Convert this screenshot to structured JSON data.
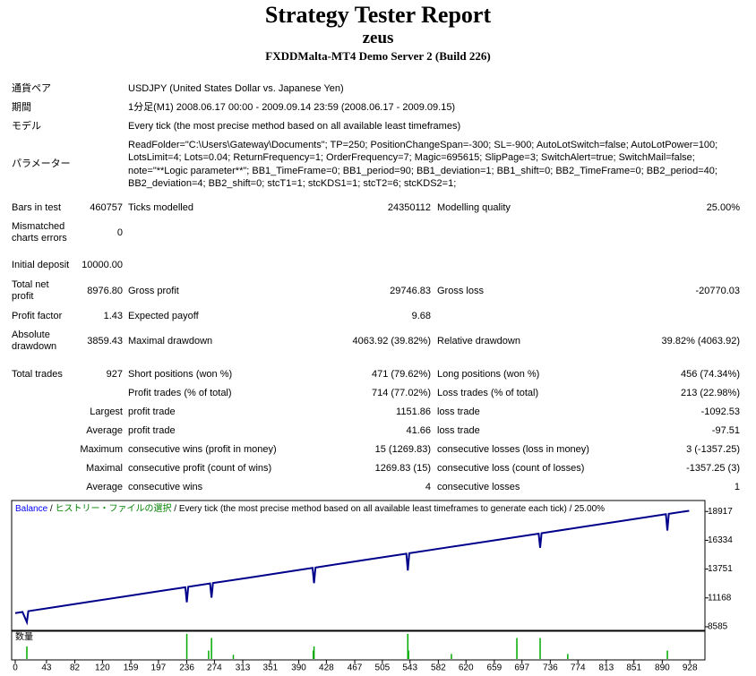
{
  "header": {
    "title": "Strategy Tester Report",
    "name": "zeus",
    "server": "FXDDMalta-MT4 Demo Server 2 (Build 226)"
  },
  "info": [
    {
      "label": "通貨ペア",
      "value": [
        "USDJPY (United States Dollar vs. Japanese Yen)"
      ]
    },
    {
      "label": "期間",
      "value": [
        "1分足(M1) 2008.06.17 00:00 - 2009.09.14 23:59 (2008.06.17 - 2009.09.15)"
      ]
    },
    {
      "label": "モデル",
      "value": [
        "Every tick (the most precise method based on all available least timeframes)"
      ]
    },
    {
      "label": "パラメーター",
      "value": [
        "ReadFolder=\"C:\\Users\\Gateway\\Documents\"; TP=250; PositionChangeSpan=-300; SL=-900; AutoLotSwitch=false; AutoLotPower=100;",
        "LotsLimit=4; Lots=0.04; ReturnFrequency=1; OrderFrequency=7; Magic=695615; SlipPage=3; SwitchAlert=true; SwitchMail=false;",
        "note=\"**Logic parameter**\"; BB1_TimeFrame=0; BB1_period=90; BB1_deviation=1; BB1_shift=0; BB2_TimeFrame=0; BB2_period=40;",
        "BB2_deviation=4; BB2_shift=0; stcT1=1; stcKDS1=1; stcT2=6; stcKDS2=1;"
      ]
    }
  ],
  "stats": [
    {
      "label": [
        "Bars in test"
      ],
      "value": "460757",
      "label2": "Ticks modelled",
      "value2": "24350112",
      "label3": "Modelling quality",
      "value3": "25.00%"
    },
    {
      "label": [
        "Mismatched",
        "charts errors"
      ],
      "value": "0"
    },
    {
      "label": [
        "Initial deposit"
      ],
      "value": "10000.00"
    },
    {
      "label": [
        "Total net",
        "profit"
      ],
      "value": "8976.80",
      "label2": "Gross profit",
      "value2": "29746.83",
      "label3": "Gross loss",
      "value3": "-20770.03"
    },
    {
      "label": [
        "Profit factor"
      ],
      "value": "1.43",
      "label2": "Expected payoff",
      "value2": "9.68"
    },
    {
      "label": [
        "Absolute",
        "drawdown"
      ],
      "value": "3859.43",
      "label2": "Maximal drawdown",
      "value2": "4063.92 (39.82%)",
      "label3": "Relative drawdown",
      "value3": "39.82% (4063.92)"
    },
    {
      "label": [
        "Total trades"
      ],
      "value": "927",
      "label2": "Short positions (won %)",
      "value2": "471 (79.62%)",
      "label3": "Long positions (won %)",
      "value3": "456 (74.34%)"
    },
    {
      "label2": "Profit trades (% of total)",
      "value2": "714 (77.02%)",
      "label3": "Loss trades (% of total)",
      "value3": "213 (22.98%)"
    },
    {
      "prefix": "Largest",
      "label2": "profit trade",
      "value2": "1151.86",
      "label3": "loss trade",
      "value3": "-1092.53"
    },
    {
      "prefix": "Average",
      "label2": "profit trade",
      "value2": "41.66",
      "label3": "loss trade",
      "value3": "-97.51"
    },
    {
      "prefix": "Maximum",
      "label2": "consecutive wins (profit in money)",
      "value2": "15 (1269.83)",
      "label3": "consecutive losses (loss in money)",
      "value3": "3 (-1357.25)"
    },
    {
      "prefix": "Maximal",
      "label2": "consecutive profit (count of wins)",
      "value2": "1269.83 (15)",
      "label3": "consecutive loss (count of losses)",
      "value3": "-1357.25 (3)"
    },
    {
      "prefix": "Average",
      "label2": "consecutive wins",
      "value2": "4",
      "label3": "consecutive losses",
      "value3": "1"
    }
  ],
  "chart_data": {
    "type": "line",
    "legend": [
      {
        "text": "Balance",
        "color": "#0000ff"
      },
      {
        "text": " / ",
        "color": "#000000"
      },
      {
        "text": "ヒストリー・ファイルの選択",
        "color": "#008000"
      },
      {
        "text": " / Every tick (the most precise method based on all available least timeframes to generate each tick) / 25.00%",
        "color": "#000000"
      }
    ],
    "x": [
      0,
      10,
      16,
      18,
      50,
      100,
      150,
      200,
      234,
      236,
      238,
      268,
      270,
      272,
      320,
      370,
      409,
      411,
      413,
      480,
      538,
      540,
      542,
      600,
      660,
      720,
      722,
      724,
      780,
      840,
      895,
      897,
      899,
      927
    ],
    "series": [
      {
        "name": "Balance",
        "color": "#00008b",
        "values": [
          9806,
          9905,
          8990,
          9980,
          10300,
          10800,
          11290,
          11790,
          12120,
          10780,
          12160,
          12460,
          11190,
          12500,
          12970,
          13470,
          13860,
          12490,
          13890,
          14560,
          15130,
          13630,
          15170,
          15750,
          16340,
          16930,
          15660,
          16970,
          17530,
          18120,
          18670,
          17210,
          18710,
          18980
        ]
      }
    ],
    "xlim": [
      0,
      945
    ],
    "ylim": [
      8260,
      19900
    ],
    "xticks": [
      0,
      43,
      82,
      120,
      159,
      197,
      236,
      274,
      313,
      351,
      390,
      428,
      467,
      505,
      543,
      582,
      620,
      659,
      697,
      736,
      774,
      813,
      851,
      890,
      928
    ],
    "yticks": [
      8585,
      11168,
      13751,
      16334,
      18917
    ],
    "volume": {
      "label": "数量",
      "color": "#00aa00",
      "x": [
        16,
        236,
        266,
        270,
        300,
        410,
        411,
        540,
        541,
        600,
        690,
        722,
        760,
        897
      ],
      "values": [
        1.5,
        3,
        1,
        2.5,
        0.5,
        1,
        1.5,
        3,
        1,
        0.6,
        2.5,
        2.5,
        0.6,
        1
      ],
      "ylim": [
        0,
        3.2
      ]
    }
  }
}
